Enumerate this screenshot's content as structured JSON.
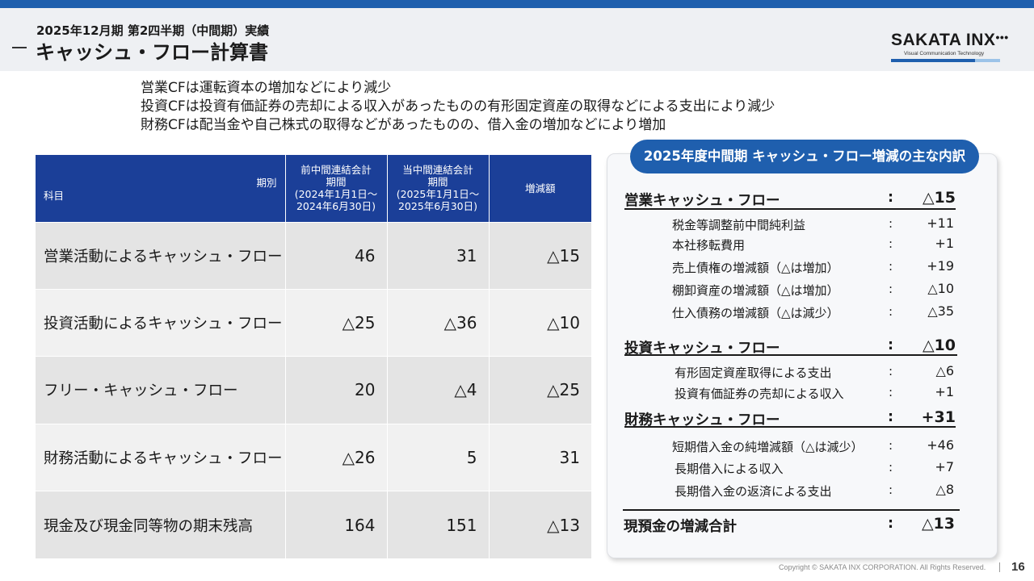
{
  "header": {
    "subtitle": "2025年12月期 第2四半期（中間期）実績",
    "title": "キャッシュ・フロー計算書"
  },
  "logo": {
    "name": "SAKATA INX",
    "tagline": "Visual Communication Technology"
  },
  "summary": [
    "営業CFは運転資本の増加などにより減少",
    "投資CFは投資有価証券の売却による収入があったものの有形固定資産の取得などによる支出により減少",
    "財務CFは配当金や自己株式の取得などがあったものの、借入金の増加などにより増加"
  ],
  "table": {
    "corner_top": "期別",
    "corner_bottom": "科目",
    "prev_period": {
      "line1": "前中間連結会計",
      "line2": "期間",
      "line3": "(2024年1月1日～",
      "line4": "2024年6月30日)"
    },
    "curr_period": {
      "line1": "当中間連結会計",
      "line2": "期間",
      "line3": "(2025年1月1日～",
      "line4": "2025年6月30日)"
    },
    "change_header": "増減額",
    "rows": [
      {
        "label": "営業活動によるキャッシュ・フロー",
        "prev": "46",
        "curr": "31",
        "change": "△15"
      },
      {
        "label": "投資活動によるキャッシュ・フロー",
        "prev": "△25",
        "curr": "△36",
        "change": "△10"
      },
      {
        "label": "フリー・キャッシュ・フロー",
        "prev": "20",
        "curr": "△4",
        "change": "△25"
      },
      {
        "label": "財務活動によるキャッシュ・フロー",
        "prev": "△26",
        "curr": "5",
        "change": "31"
      },
      {
        "label": "現金及び現金同等物の期末残高",
        "prev": "164",
        "curr": "151",
        "change": "△13"
      }
    ]
  },
  "panel": {
    "title": "2025年度中間期 キャッシュ・フロー増減の主な内訳",
    "colon": ":",
    "operating": {
      "label": "営業キャッシュ・フロー",
      "value": "△15",
      "items": [
        {
          "label": "税金等調整前中間純利益",
          "value": "+11"
        },
        {
          "label": "本社移転費用",
          "value": "+1"
        },
        {
          "label": "売上債権の増減額（△は増加）",
          "value": "+19"
        },
        {
          "label": "棚卸資産の増減額（△は増加）",
          "value": "△10"
        },
        {
          "label": "仕入債務の増減額（△は減少）",
          "value": "△35"
        }
      ]
    },
    "investing": {
      "label": "投資キャッシュ・フロー",
      "value": "△10",
      "items": [
        {
          "label": "有形固定資産取得による支出",
          "value": "△6"
        },
        {
          "label": "投資有価証券の売却による収入",
          "value": "+1"
        }
      ]
    },
    "financing": {
      "label": "財務キャッシュ・フロー",
      "value": "+31",
      "items": [
        {
          "label": "短期借入金の純増減額（△は減少）",
          "value": "+46"
        },
        {
          "label": "長期借入による収入",
          "value": "+7"
        },
        {
          "label": "長期借入金の返済による支出",
          "value": "△8"
        }
      ]
    },
    "total": {
      "label": "現預金の増減合計",
      "value": "△13"
    }
  },
  "footer": {
    "copyright": "Copyright © SAKATA INX CORPORATION. All Rights Reserved.",
    "page": "16"
  },
  "colors": {
    "brand_blue": "#1f5fae",
    "table_header": "#1b3f98"
  }
}
